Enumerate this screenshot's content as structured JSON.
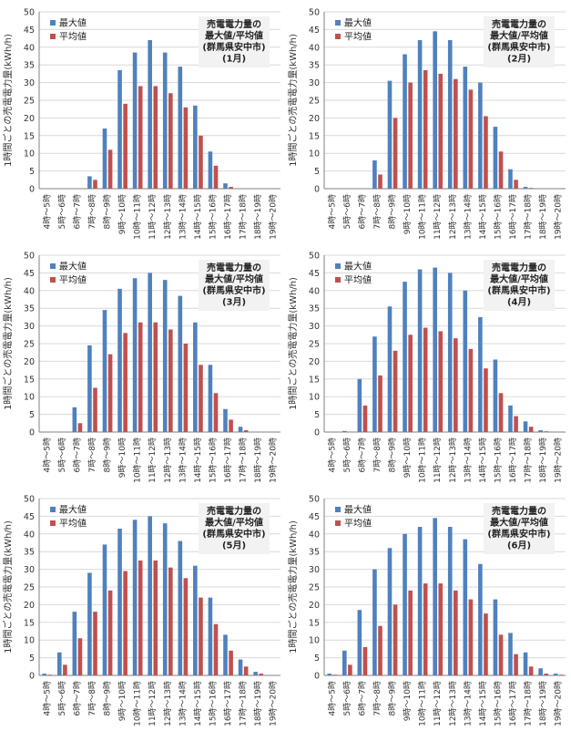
{
  "colors": {
    "max": "#4F81BD",
    "avg": "#C0504D",
    "grid": "#D9D9D9",
    "axis": "#808080",
    "titlebox": "#F2F2F2"
  },
  "chart_data": [
    {
      "type": "bar",
      "title": [
        "売電電力量の",
        "最大値/平均値",
        "(群馬県安中市)",
        "(1月)"
      ],
      "ylabel": "1時間ごとの売電電力量(kWh/h)",
      "ylim": [
        0,
        50
      ],
      "yticks": [
        "0",
        "5",
        "10",
        "15",
        "20",
        "25",
        "30",
        "35",
        "40",
        "45",
        "50"
      ],
      "categories": [
        "4時～5時",
        "5時～6時",
        "6時～7時",
        "7時～8時",
        "8時～9時",
        "9時～10時",
        "10時～11時",
        "11時～12時",
        "12時～13時",
        "13時～14時",
        "14時～15時",
        "15時～16時",
        "16時～17時",
        "17時～18時",
        "18時～19時",
        "19時～20時"
      ],
      "series": [
        {
          "name": "最大値",
          "values": [
            0,
            0,
            0,
            3.5,
            17,
            33.5,
            38.5,
            42,
            38.5,
            34.5,
            23.5,
            10.5,
            1.5,
            0,
            0,
            0
          ]
        },
        {
          "name": "平均値",
          "values": [
            0,
            0,
            0,
            2.5,
            11,
            24,
            29,
            29,
            27,
            23,
            15,
            6.5,
            0.5,
            0,
            0,
            0
          ]
        }
      ]
    },
    {
      "type": "bar",
      "title": [
        "売電電力量の",
        "最大値/平均値",
        "(群馬県安中市)",
        "(2月)"
      ],
      "ylabel": "1時間ごとの売電電力量(kWh/h)",
      "ylim": [
        0,
        50
      ],
      "yticks": [
        "0",
        "5",
        "10",
        "15",
        "20",
        "25",
        "30",
        "35",
        "40",
        "45",
        "50"
      ],
      "categories": [
        "4時～5時",
        "5時～6時",
        "6時～7時",
        "7時～8時",
        "8時～9時",
        "9時～10時",
        "10時～11時",
        "11時～12時",
        "12時～13時",
        "13時～14時",
        "14時～15時",
        "15時～16時",
        "16時～17時",
        "17時～18時",
        "18時～19時",
        "19時～20時"
      ],
      "series": [
        {
          "name": "最大値",
          "values": [
            0,
            0,
            0,
            8,
            30.5,
            38,
            42,
            44.5,
            42,
            34.5,
            30,
            17.5,
            5.5,
            0.5,
            0,
            0
          ]
        },
        {
          "name": "平均値",
          "values": [
            0,
            0,
            0,
            4,
            20,
            30,
            33.5,
            32.5,
            31,
            28,
            20.5,
            10.5,
            2.5,
            0.2,
            0,
            0
          ]
        }
      ]
    },
    {
      "type": "bar",
      "title": [
        "売電電力量の",
        "最大値/平均値",
        "(群馬県安中市)",
        "(3月)"
      ],
      "ylabel": "1時間ごとの売電電力量(kWh/h)",
      "ylim": [
        0,
        50
      ],
      "yticks": [
        "0",
        "5",
        "10",
        "15",
        "20",
        "25",
        "30",
        "35",
        "40",
        "45",
        "50"
      ],
      "categories": [
        "4時～5時",
        "5時～6時",
        "6時～7時",
        "7時～8時",
        "8時～9時",
        "9時～10時",
        "10時～11時",
        "11時～12時",
        "12時～13時",
        "13時～14時",
        "14時～15時",
        "15時～16時",
        "16時～17時",
        "17時～18時",
        "18時～19時",
        "19時～20時"
      ],
      "series": [
        {
          "name": "最大値",
          "values": [
            0,
            0,
            7,
            24.5,
            34.5,
            40.5,
            43.5,
            45,
            43,
            38.5,
            31,
            19,
            6.5,
            1.5,
            0,
            0
          ]
        },
        {
          "name": "平均値",
          "values": [
            0,
            0,
            2.5,
            12.5,
            22,
            28,
            31,
            31,
            29,
            25,
            19,
            11,
            3.5,
            0.5,
            0,
            0
          ]
        }
      ]
    },
    {
      "type": "bar",
      "title": [
        "売電電力量の",
        "最大値/平均値",
        "(群馬県安中市)",
        "(4月)"
      ],
      "ylabel": "1時間ごとの売電電力量(kWh/h)",
      "ylim": [
        0,
        50
      ],
      "yticks": [
        "0",
        "5",
        "10",
        "15",
        "20",
        "25",
        "30",
        "35",
        "40",
        "45",
        "50"
      ],
      "categories": [
        "4時～5時",
        "5時～6時",
        "6時～7時",
        "7時～8時",
        "8時～9時",
        "9時～10時",
        "10時～11時",
        "11時～12時",
        "12時～13時",
        "13時～14時",
        "14時～15時",
        "15時～16時",
        "16時～17時",
        "17時～18時",
        "18時～19時",
        "19時～20時"
      ],
      "series": [
        {
          "name": "最大値",
          "values": [
            0,
            0.3,
            15,
            27,
            35.5,
            42.5,
            46,
            46.5,
            45,
            40,
            32.5,
            20.5,
            7.5,
            3,
            0.5,
            0
          ]
        },
        {
          "name": "平均値",
          "values": [
            0,
            0.1,
            7.5,
            16,
            23,
            27.5,
            29.5,
            28.5,
            26.5,
            23.5,
            18,
            11,
            4.5,
            1.5,
            0.2,
            0
          ]
        }
      ]
    },
    {
      "type": "bar",
      "title": [
        "売電電力量の",
        "最大値/平均値",
        "(群馬県安中市)",
        "(5月)"
      ],
      "ylabel": "1時間ごとの売電電力量(kWh/h)",
      "ylim": [
        0,
        50
      ],
      "yticks": [
        "0",
        "5",
        "10",
        "15",
        "20",
        "25",
        "30",
        "35",
        "40",
        "45",
        "50"
      ],
      "categories": [
        "4時～5時",
        "5時～6時",
        "6時～7時",
        "7時～8時",
        "8時～9時",
        "9時～10時",
        "10時～11時",
        "11時～12時",
        "12時～13時",
        "13時～14時",
        "14時～15時",
        "15時～16時",
        "16時～17時",
        "17時～18時",
        "18時～19時",
        "19時～20時"
      ],
      "series": [
        {
          "name": "最大値",
          "values": [
            0.5,
            6.5,
            18,
            29,
            37,
            41.5,
            44,
            45,
            43,
            38,
            31,
            22,
            11.5,
            4.5,
            1,
            0
          ]
        },
        {
          "name": "平均値",
          "values": [
            0.2,
            3,
            10.5,
            18,
            24,
            29.5,
            32.5,
            32.5,
            30.5,
            27.5,
            22,
            14.5,
            7,
            2.5,
            0.5,
            0
          ]
        }
      ]
    },
    {
      "type": "bar",
      "title": [
        "売電電力量の",
        "最大値/平均値",
        "(群馬県安中市)",
        "(6月)"
      ],
      "ylabel": "1時間ごとの売電電力量(kWh/h)",
      "ylim": [
        0,
        50
      ],
      "yticks": [
        "0",
        "5",
        "10",
        "15",
        "20",
        "25",
        "30",
        "35",
        "40",
        "45",
        "50"
      ],
      "categories": [
        "4時～5時",
        "5時～6時",
        "6時～7時",
        "7時～8時",
        "8時～9時",
        "9時～10時",
        "10時～11時",
        "11時～12時",
        "12時～13時",
        "13時～14時",
        "14時～15時",
        "15時～16時",
        "16時～17時",
        "17時～18時",
        "18時～19時",
        "19時～20時"
      ],
      "series": [
        {
          "name": "最大値",
          "values": [
            0.5,
            7,
            18.5,
            30,
            36,
            40,
            42,
            44.5,
            42,
            38.5,
            31.5,
            21.5,
            12,
            6.5,
            2,
            0.5
          ]
        },
        {
          "name": "平均値",
          "values": [
            0.2,
            3,
            8,
            14,
            20,
            24,
            26,
            26,
            24,
            21.5,
            17.5,
            11.5,
            6,
            2.5,
            0.5,
            0.2
          ]
        }
      ]
    }
  ]
}
